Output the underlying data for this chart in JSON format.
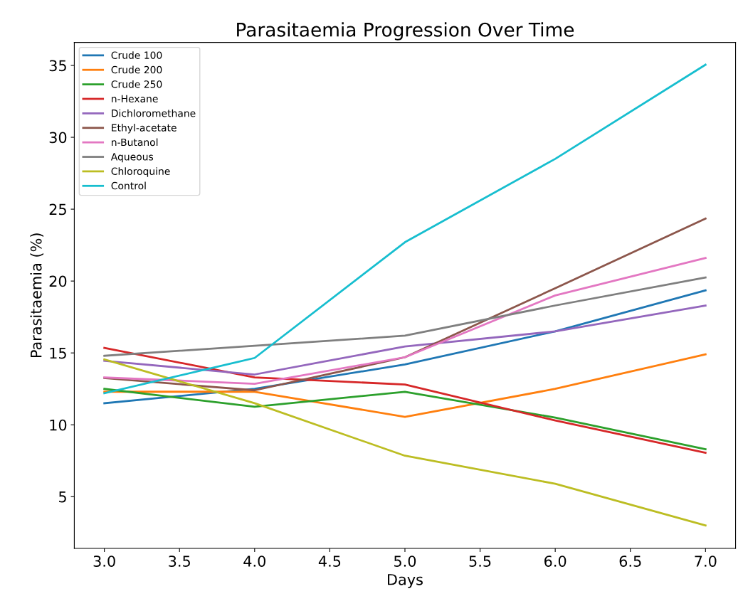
{
  "chart_data": {
    "type": "line",
    "title": "Parasitaemia Progression Over Time",
    "xlabel": "Days",
    "ylabel": "Parasitaemia (%)",
    "x": [
      3,
      4,
      5,
      6,
      7
    ],
    "series": [
      {
        "name": "Crude 100",
        "color": "#1f77b4",
        "values": [
          11.5,
          12.5,
          14.2,
          16.5,
          19.35
        ]
      },
      {
        "name": "Crude 200",
        "color": "#ff7f0e",
        "values": [
          12.3,
          12.3,
          10.55,
          12.5,
          14.9
        ]
      },
      {
        "name": "Crude 250",
        "color": "#2ca02c",
        "values": [
          12.5,
          11.25,
          12.3,
          10.5,
          8.3
        ]
      },
      {
        "name": "n-Hexane",
        "color": "#d62728",
        "values": [
          15.35,
          13.3,
          12.8,
          10.3,
          8.05
        ]
      },
      {
        "name": "Dichloromethane",
        "color": "#9467bd",
        "values": [
          14.45,
          13.5,
          15.45,
          16.5,
          18.3
        ]
      },
      {
        "name": "Ethyl-acetate",
        "color": "#8c564b",
        "values": [
          13.25,
          12.4,
          14.7,
          19.5,
          24.35
        ]
      },
      {
        "name": "n-Butanol",
        "color": "#e377c2",
        "values": [
          13.3,
          12.85,
          14.7,
          19.0,
          21.6
        ]
      },
      {
        "name": "Aqueous",
        "color": "#7f7f7f",
        "values": [
          14.8,
          15.5,
          16.2,
          18.3,
          20.25
        ]
      },
      {
        "name": "Chloroquine",
        "color": "#bcbd22",
        "values": [
          14.55,
          11.5,
          7.85,
          5.9,
          3.0
        ]
      },
      {
        "name": "Control",
        "color": "#17becf",
        "values": [
          12.2,
          14.65,
          22.7,
          28.5,
          35.05
        ]
      }
    ],
    "xlim": [
      2.8,
      7.2
    ],
    "xticks": [
      {
        "value": 3,
        "label": "3.0"
      },
      {
        "value": 3.5,
        "label": "3.5"
      },
      {
        "value": 4,
        "label": "4.0"
      },
      {
        "value": 4.5,
        "label": "4.5"
      },
      {
        "value": 5,
        "label": "5.0"
      },
      {
        "value": 5.5,
        "label": "5.5"
      },
      {
        "value": 6,
        "label": "6.0"
      },
      {
        "value": 6.5,
        "label": "6.5"
      },
      {
        "value": 7,
        "label": "7.0"
      }
    ],
    "ylim": [
      1.4,
      36.6
    ],
    "yticks": [
      5,
      10,
      15,
      20,
      25,
      30,
      35
    ],
    "legend": "upper left",
    "grid": false,
    "marker": "none",
    "line_style": "solid"
  }
}
